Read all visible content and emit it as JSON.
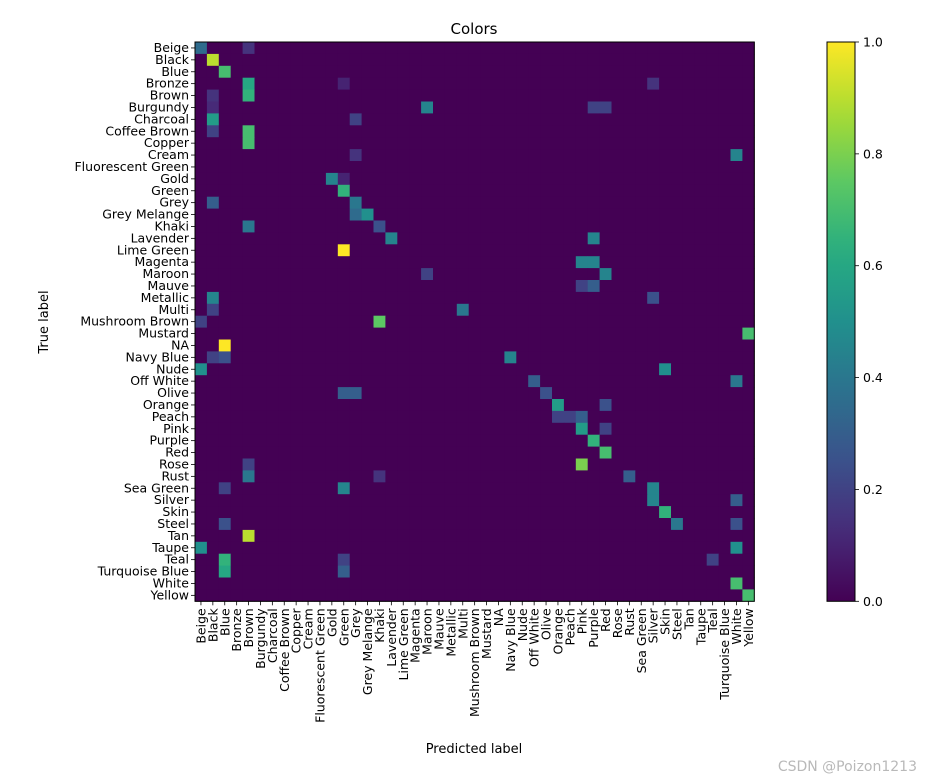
{
  "chart_data": {
    "type": "heatmap",
    "title": "Colors",
    "xlabel": "Predicted label",
    "ylabel": "True label",
    "colormap": "viridis",
    "colorbar": {
      "range": [
        0.0,
        1.0
      ],
      "ticks": [
        "0.0",
        "0.2",
        "0.4",
        "0.6",
        "0.8",
        "1.0"
      ]
    },
    "labels": [
      "Beige",
      "Black",
      "Blue",
      "Bronze",
      "Brown",
      "Burgundy",
      "Charcoal",
      "Coffee Brown",
      "Copper",
      "Cream",
      "Fluorescent Green",
      "Gold",
      "Green",
      "Grey",
      "Grey Melange",
      "Khaki",
      "Lavender",
      "Lime Green",
      "Magenta",
      "Maroon",
      "Mauve",
      "Metallic",
      "Multi",
      "Mushroom Brown",
      "Mustard",
      "NA",
      "Navy Blue",
      "Nude",
      "Off White",
      "Olive",
      "Orange",
      "Peach",
      "Pink",
      "Purple",
      "Red",
      "Rose",
      "Rust",
      "Sea Green",
      "Silver",
      "Skin",
      "Steel",
      "Tan",
      "Taupe",
      "Teal",
      "Turquoise Blue",
      "White",
      "Yellow"
    ],
    "notable_cells": [
      {
        "true": "Beige",
        "pred": "Beige",
        "value": 0.35
      },
      {
        "true": "Beige",
        "pred": "Brown",
        "value": 0.15
      },
      {
        "true": "Black",
        "pred": "Black",
        "value": 0.9
      },
      {
        "true": "Blue",
        "pred": "Blue",
        "value": 0.7
      },
      {
        "true": "Bronze",
        "pred": "Brown",
        "value": 0.6
      },
      {
        "true": "Bronze",
        "pred": "Green",
        "value": 0.1
      },
      {
        "true": "Bronze",
        "pred": "Silver",
        "value": 0.15
      },
      {
        "true": "Brown",
        "pred": "Brown",
        "value": 0.65
      },
      {
        "true": "Brown",
        "pred": "Black",
        "value": 0.15
      },
      {
        "true": "Burgundy",
        "pred": "Maroon",
        "value": 0.45
      },
      {
        "true": "Burgundy",
        "pred": "Purple",
        "value": 0.2
      },
      {
        "true": "Burgundy",
        "pred": "Red",
        "value": 0.2
      },
      {
        "true": "Burgundy",
        "pred": "Black",
        "value": 0.12
      },
      {
        "true": "Charcoal",
        "pred": "Black",
        "value": 0.55
      },
      {
        "true": "Charcoal",
        "pred": "Grey",
        "value": 0.2
      },
      {
        "true": "Coffee Brown",
        "pred": "Brown",
        "value": 0.7
      },
      {
        "true": "Coffee Brown",
        "pred": "Black",
        "value": 0.2
      },
      {
        "true": "Copper",
        "pred": "Brown",
        "value": 0.7
      },
      {
        "true": "Cream",
        "pred": "White",
        "value": 0.45
      },
      {
        "true": "Cream",
        "pred": "Grey",
        "value": 0.15
      },
      {
        "true": "Gold",
        "pred": "Gold",
        "value": 0.45
      },
      {
        "true": "Gold",
        "pred": "Green",
        "value": 0.1
      },
      {
        "true": "Green",
        "pred": "Green",
        "value": 0.65
      },
      {
        "true": "Grey",
        "pred": "Grey",
        "value": 0.4
      },
      {
        "true": "Grey",
        "pred": "Black",
        "value": 0.3
      },
      {
        "true": "Grey Melange",
        "pred": "Grey Melange",
        "value": 0.5
      },
      {
        "true": "Grey Melange",
        "pred": "Grey",
        "value": 0.35
      },
      {
        "true": "Khaki",
        "pred": "Brown",
        "value": 0.4
      },
      {
        "true": "Khaki",
        "pred": "Khaki",
        "value": 0.25
      },
      {
        "true": "Lavender",
        "pred": "Lavender",
        "value": 0.45
      },
      {
        "true": "Lavender",
        "pred": "Purple",
        "value": 0.45
      },
      {
        "true": "Lime Green",
        "pred": "Green",
        "value": 1.0
      },
      {
        "true": "Magenta",
        "pred": "Pink",
        "value": 0.45
      },
      {
        "true": "Magenta",
        "pred": "Purple",
        "value": 0.45
      },
      {
        "true": "Maroon",
        "pred": "Red",
        "value": 0.45
      },
      {
        "true": "Maroon",
        "pred": "Maroon",
        "value": 0.2
      },
      {
        "true": "Mauve",
        "pred": "Purple",
        "value": 0.3
      },
      {
        "true": "Mauve",
        "pred": "Pink",
        "value": 0.2
      },
      {
        "true": "Metallic",
        "pred": "Black",
        "value": 0.45
      },
      {
        "true": "Metallic",
        "pred": "Silver",
        "value": 0.25
      },
      {
        "true": "Multi",
        "pred": "Multi",
        "value": 0.4
      },
      {
        "true": "Multi",
        "pred": "Black",
        "value": 0.2
      },
      {
        "true": "Mushroom Brown",
        "pred": "Khaki",
        "value": 0.75
      },
      {
        "true": "Mushroom Brown",
        "pred": "Beige",
        "value": 0.2
      },
      {
        "true": "Mustard",
        "pred": "Yellow",
        "value": 0.7
      },
      {
        "true": "NA",
        "pred": "Blue",
        "value": 1.0
      },
      {
        "true": "Navy Blue",
        "pred": "Navy Blue",
        "value": 0.45
      },
      {
        "true": "Navy Blue",
        "pred": "Blue",
        "value": 0.25
      },
      {
        "true": "Navy Blue",
        "pred": "Black",
        "value": 0.2
      },
      {
        "true": "Nude",
        "pred": "Beige",
        "value": 0.5
      },
      {
        "true": "Nude",
        "pred": "Skin",
        "value": 0.5
      },
      {
        "true": "Off White",
        "pred": "White",
        "value": 0.4
      },
      {
        "true": "Off White",
        "pred": "Off White",
        "value": 0.3
      },
      {
        "true": "Olive",
        "pred": "Green",
        "value": 0.3
      },
      {
        "true": "Olive",
        "pred": "Grey",
        "value": 0.3
      },
      {
        "true": "Olive",
        "pred": "Olive",
        "value": 0.25
      },
      {
        "true": "Orange",
        "pred": "Orange",
        "value": 0.55
      },
      {
        "true": "Orange",
        "pred": "Red",
        "value": 0.25
      },
      {
        "true": "Peach",
        "pred": "Pink",
        "value": 0.3
      },
      {
        "true": "Peach",
        "pred": "Orange",
        "value": 0.2
      },
      {
        "true": "Peach",
        "pred": "Peach",
        "value": 0.2
      },
      {
        "true": "Pink",
        "pred": "Pink",
        "value": 0.55
      },
      {
        "true": "Pink",
        "pred": "Red",
        "value": 0.2
      },
      {
        "true": "Purple",
        "pred": "Purple",
        "value": 0.65
      },
      {
        "true": "Red",
        "pred": "Red",
        "value": 0.7
      },
      {
        "true": "Rose",
        "pred": "Pink",
        "value": 0.8
      },
      {
        "true": "Rose",
        "pred": "Brown",
        "value": 0.2
      },
      {
        "true": "Rust",
        "pred": "Brown",
        "value": 0.4
      },
      {
        "true": "Rust",
        "pred": "Rust",
        "value": 0.3
      },
      {
        "true": "Rust",
        "pred": "Khaki",
        "value": 0.15
      },
      {
        "true": "Sea Green",
        "pred": "Green",
        "value": 0.45
      },
      {
        "true": "Sea Green",
        "pred": "Silver",
        "value": 0.45
      },
      {
        "true": "Sea Green",
        "pred": "Blue",
        "value": 0.2
      },
      {
        "true": "Silver",
        "pred": "Silver",
        "value": 0.45
      },
      {
        "true": "Silver",
        "pred": "White",
        "value": 0.3
      },
      {
        "true": "Skin",
        "pred": "Skin",
        "value": 0.65
      },
      {
        "true": "Steel",
        "pred": "Steel",
        "value": 0.4
      },
      {
        "true": "Steel",
        "pred": "Blue",
        "value": 0.25
      },
      {
        "true": "Steel",
        "pred": "White",
        "value": 0.25
      },
      {
        "true": "Tan",
        "pred": "Brown",
        "value": 0.9
      },
      {
        "true": "Taupe",
        "pred": "Beige",
        "value": 0.5
      },
      {
        "true": "Taupe",
        "pred": "White",
        "value": 0.5
      },
      {
        "true": "Teal",
        "pred": "Blue",
        "value": 0.65
      },
      {
        "true": "Teal",
        "pred": "Green",
        "value": 0.2
      },
      {
        "true": "Teal",
        "pred": "Teal",
        "value": 0.2
      },
      {
        "true": "Turquoise Blue",
        "pred": "Blue",
        "value": 0.6
      },
      {
        "true": "Turquoise Blue",
        "pred": "Green",
        "value": 0.3
      },
      {
        "true": "White",
        "pred": "White",
        "value": 0.7
      },
      {
        "true": "Yellow",
        "pred": "Yellow",
        "value": 0.7
      }
    ],
    "background_value": 0.0
  },
  "watermark": "CSDN @Poizon1213"
}
